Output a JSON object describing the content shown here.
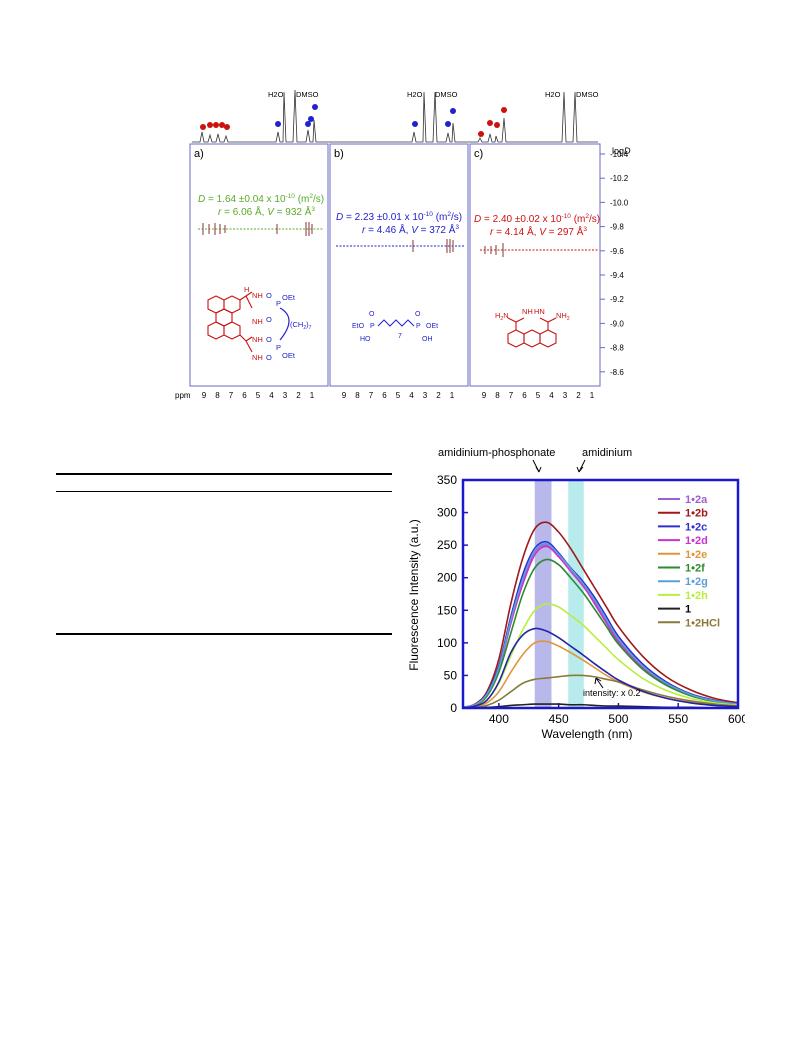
{
  "nmr_figure": {
    "peak_labels": {
      "water": "H2O",
      "dmso": "DMSO"
    },
    "logd_axis": {
      "title_prefix": "log",
      "title_var": "D",
      "ticks": [
        "-10.4",
        "-10.2",
        "-10.0",
        "-9.8",
        "-9.6",
        "-9.4",
        "-9.2",
        "-9.0",
        "-8.8",
        "-8.6"
      ]
    },
    "ppm_label": "ppm",
    "ppm_ticks": [
      "9",
      "8",
      "7",
      "6",
      "5",
      "4",
      "3",
      "2",
      "1"
    ],
    "panels": [
      {
        "letter": "a)",
        "color": "#5aaa28",
        "d_var": "D",
        "d_value": " = 1.64 ±0.04 x 10",
        "d_exp": "-10",
        "d_unit": " (m",
        "d_unit_sup": "2",
        "d_unit_end": "/s)",
        "r_var": "r",
        "r_value": " = 6.06 Å, ",
        "v_var": "V",
        "v_value": " =  932 Å",
        "v_sup": "3",
        "structure_labels": {
          "nh_top": "N",
          "h_top": "H",
          "oet_top": "OEt",
          "chain": "(CH",
          "chain_sub": "2",
          "chain_sub2": "7",
          "oet_bottom": "OEt",
          "p": "P",
          "o": "O",
          "nh": "NH"
        }
      },
      {
        "letter": "b)",
        "color": "#2222cc",
        "d_var": "D",
        "d_value": " = 2.23 ±0.01 x 10",
        "d_exp": "-10",
        "d_unit": " (m",
        "d_unit_sup": "2",
        "d_unit_end": "/s)",
        "r_var": "r",
        "r_value": " = 4.46 Å, ",
        "v_var": "V",
        "v_value": " =  372 Å",
        "v_sup": "3",
        "structure_labels": {
          "eto": "EtO",
          "oet": "OEt",
          "ho": "HO",
          "oh": "OH",
          "n": "7",
          "p": "P",
          "o": "O"
        }
      },
      {
        "letter": "c)",
        "color": "#cc1111",
        "d_var": "D",
        "d_value": " = 2.40 ±0.02 x 10",
        "d_exp": "-10",
        "d_unit": " (m",
        "d_unit_sup": "2",
        "d_unit_end": "/s)",
        "r_var": "r",
        "r_value": " = 4.14 Å, ",
        "v_var": "V",
        "v_value": " =  297 Å",
        "v_sup": "3",
        "structure_labels": {
          "h2n_left": "H",
          "h2n_sub": "2",
          "h2n_n": "N",
          "nh_left": "NH",
          "hn_right": "HN",
          "nh2_right": "NH",
          "nh2_sub": "2"
        }
      }
    ]
  },
  "fluorescence_figure": {
    "annotations": {
      "amidinium_phosphonate": "amidinium-phosphonate",
      "amidinium": "amidinium",
      "intensity_note": "intensity: x 0.2"
    },
    "colors": {
      "band_left": "#8888dd",
      "band_right": "#88dddd",
      "frame": "#1a1acc"
    }
  },
  "chart_data": {
    "type": "line",
    "xlabel": "Wavelength (nm)",
    "ylabel": "Fluorescence Intensity (a.u.)",
    "xlim": [
      370,
      600
    ],
    "ylim": [
      0,
      350
    ],
    "x_ticks": [
      "400",
      "450",
      "500",
      "550",
      "600"
    ],
    "y_ticks": [
      "0",
      "50",
      "100",
      "150",
      "200",
      "250",
      "300",
      "350"
    ],
    "legend_position": "top-right",
    "x": [
      370,
      380,
      390,
      400,
      410,
      420,
      430,
      440,
      450,
      460,
      470,
      480,
      490,
      500,
      520,
      540,
      560,
      580,
      600
    ],
    "series": [
      {
        "name_bold": "1",
        "name_dot": "•",
        "name_rest": "2a",
        "color": "#9b5fd6",
        "values": [
          1,
          5,
          20,
          60,
          130,
          195,
          240,
          250,
          235,
          215,
          190,
          160,
          130,
          100,
          60,
          35,
          20,
          10,
          5
        ]
      },
      {
        "name_bold": "1",
        "name_dot": "•",
        "name_rest": "2b",
        "color": "#a01818",
        "values": [
          1,
          6,
          25,
          75,
          160,
          230,
          275,
          285,
          270,
          245,
          215,
          185,
          155,
          125,
          80,
          48,
          28,
          15,
          8
        ]
      },
      {
        "name_bold": "1",
        "name_dot": "•",
        "name_rest": "2c",
        "color": "#2f2fd0",
        "values": [
          1,
          5,
          22,
          65,
          140,
          205,
          245,
          255,
          238,
          215,
          195,
          170,
          140,
          110,
          68,
          40,
          22,
          12,
          6
        ]
      },
      {
        "name_bold": "1",
        "name_dot": "•",
        "name_rest": "2d",
        "color": "#cc33cc",
        "values": [
          1,
          5,
          20,
          60,
          130,
          190,
          235,
          248,
          232,
          210,
          188,
          162,
          132,
          103,
          63,
          37,
          20,
          11,
          5
        ]
      },
      {
        "name_bold": "1",
        "name_dot": "•",
        "name_rest": "2e",
        "color": "#e0963a",
        "values": [
          0,
          2,
          8,
          25,
          55,
          82,
          100,
          102,
          95,
          85,
          74,
          62,
          50,
          40,
          25,
          15,
          9,
          5,
          3
        ]
      },
      {
        "name_bold": "1",
        "name_dot": "•",
        "name_rest": "2f",
        "color": "#2e8a2e",
        "values": [
          1,
          4,
          18,
          55,
          115,
          175,
          215,
          228,
          220,
          200,
          178,
          152,
          125,
          98,
          60,
          35,
          19,
          10,
          5
        ]
      },
      {
        "name_bold": "1",
        "name_dot": "•",
        "name_rest": "2g",
        "color": "#5aa0d8",
        "values": [
          1,
          5,
          21,
          62,
          135,
          198,
          242,
          252,
          236,
          214,
          192,
          166,
          136,
          106,
          65,
          38,
          21,
          11,
          6
        ]
      },
      {
        "name_bold": "1",
        "name_dot": "•",
        "name_rest": "2h",
        "color": "#b8ee40",
        "values": [
          0,
          3,
          12,
          38,
          80,
          120,
          150,
          160,
          155,
          142,
          128,
          110,
          92,
          74,
          46,
          27,
          15,
          8,
          4
        ]
      },
      {
        "name_bold": "1",
        "name_dot": "",
        "name_rest": "",
        "color": "#222222",
        "values": [
          0,
          0,
          1,
          2,
          4,
          5,
          6,
          6,
          6,
          5,
          5,
          4,
          3,
          3,
          2,
          1,
          1,
          0,
          0
        ]
      },
      {
        "name_bold": "1",
        "name_dot": "•",
        "name_rest": "2HCl",
        "color": "#8a7a3a",
        "values": [
          0,
          1,
          4,
          12,
          25,
          38,
          44,
          46,
          48,
          50,
          50,
          48,
          44,
          40,
          28,
          18,
          11,
          6,
          3
        ]
      }
    ],
    "extra_series": [
      {
        "color": "#2222aa",
        "values": [
          0,
          3,
          12,
          40,
          85,
          112,
          122,
          118,
          108,
          95,
          82,
          68,
          55,
          43,
          26,
          15,
          8,
          4,
          2
        ]
      }
    ]
  }
}
